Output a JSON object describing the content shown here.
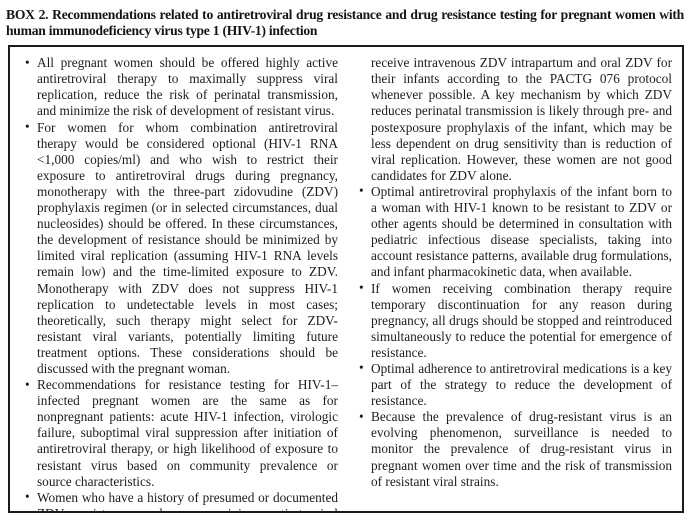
{
  "title": "BOX 2. Recommendations related to antiretroviral drug resistance and drug resistance testing for pregnant women with human immunodeficiency virus type 1 (HIV-1) infection",
  "bullet_char": "•",
  "colors": {
    "background": "#ffffff",
    "text": "#1c1c1c",
    "border": "#1a1a1a"
  },
  "box": {
    "left_column": {
      "items": [
        {
          "text": "All pregnant women should be offered highly active antiretroviral therapy to maximally suppress viral replication, reduce the risk of perinatal transmission, and minimize the risk of development of resistant virus."
        },
        {
          "text": "For women for whom combination antiretroviral therapy would be considered optional (HIV-1 RNA <1,000 copies/ml) and who wish to restrict their exposure to antiretroviral drugs during pregnancy, monotherapy with the three-part zidovudine (ZDV) prophylaxis regimen (or in selected circumstances, dual nucleosides) should be offered. In these circumstances, the development of resistance should be minimized by limited viral replication (assuming HIV-1 RNA levels remain low) and the time-limited exposure to ZDV. Monotherapy with ZDV does not suppress HIV-1 replication to undetectable levels in most cases; theoretically, such therapy might select for ZDV-resistant viral variants, potentially limiting future treatment options. These considerations should be discussed with the pregnant woman."
        },
        {
          "text": "Recommendations for resistance testing for HIV-1–infected pregnant women are the same as for nonpregnant patients: acute HIV-1 infection, virologic failure, suboptimal viral suppression after initiation of antiretroviral therapy, or high likelihood of exposure to resistant virus based on community prevalence or source characteristics."
        },
        {
          "text": "Women who have a history of presumed or documented ZDV resistance and are receiving antiretroviral regimens that do not include ZDV for their own health should still"
        }
      ]
    },
    "right_column": {
      "continuation_text": "receive intravenous ZDV intrapartum and oral ZDV for their infants according to the PACTG 076 protocol whenever possible. A key mechanism by which ZDV reduces perinatal transmission is likely through pre- and postexposure prophylaxis of the infant, which may be less dependent on drug sensitivity than is reduction of viral replication. However, these women are not good candidates for ZDV alone.",
      "items": [
        {
          "text": "Optimal antiretroviral prophylaxis of the infant born to a woman with HIV-1 known to be resistant to ZDV or other agents should be determined in consultation with pediatric infectious disease specialists, taking into account resistance patterns, available drug formulations, and infant pharmacokinetic data, when available."
        },
        {
          "text": "If women receiving combination therapy require temporary discontinuation for any reason during pregnancy, all drugs should be stopped and reintroduced simultaneously to reduce the potential for emergence of resistance."
        },
        {
          "text": "Optimal adherence to antiretroviral medications is a key part of the strategy to reduce the development of resistance."
        },
        {
          "text": "Because the prevalence of drug-resistant virus is an evolving phenomenon, surveillance is needed to monitor the prevalence of drug-resistant virus in pregnant women over time and the risk of transmission of resistant viral strains."
        }
      ]
    }
  }
}
